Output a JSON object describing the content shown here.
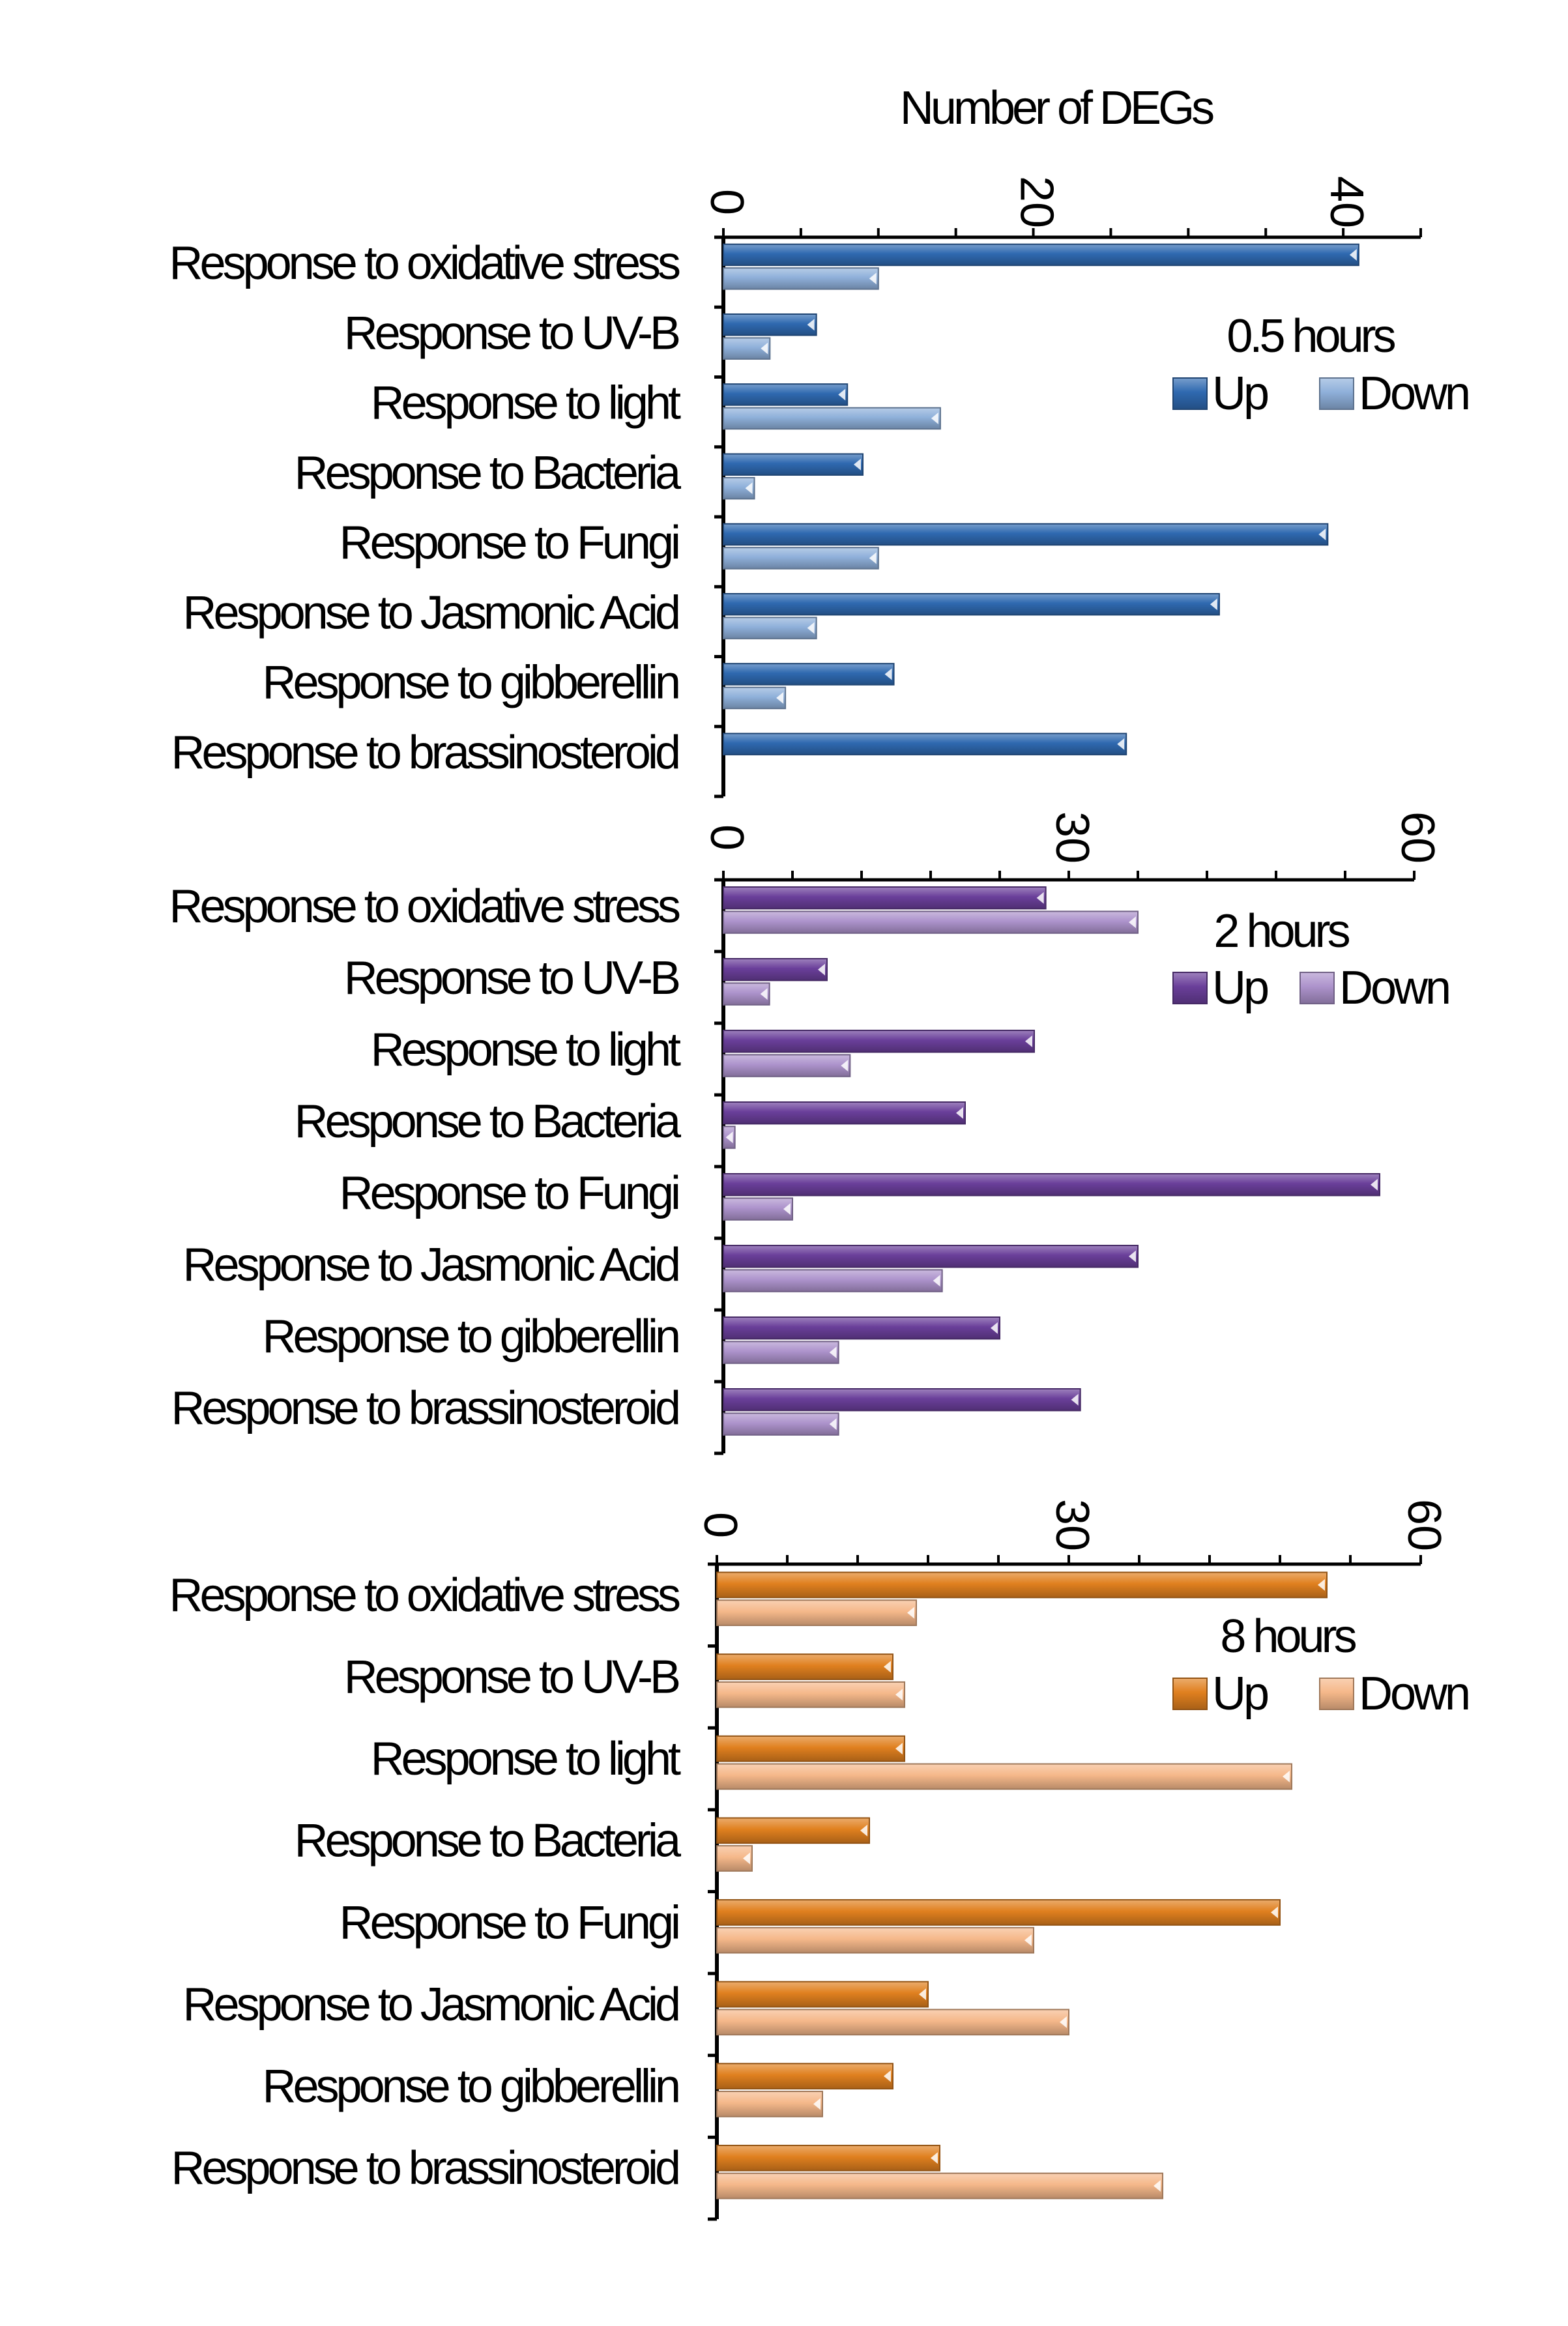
{
  "chart_data": [
    {
      "type": "bar",
      "orientation": "horizontal",
      "title": "Number of DEGs",
      "panel_label": "0.5 hours",
      "categories": [
        "Response to oxidative stress",
        "Response to UV-B",
        "Response to light",
        "Response to Bacteria",
        "Response to Fungi",
        "Response to Jasmonic Acid",
        "Response to gibberellin",
        "Response to brassinosteroid"
      ],
      "series": [
        {
          "name": "Up",
          "values": [
            41,
            6,
            8,
            9,
            39,
            32,
            11,
            26
          ]
        },
        {
          "name": "Down",
          "values": [
            10,
            3,
            14,
            2,
            10,
            6,
            4,
            0
          ]
        }
      ],
      "xlim": [
        0,
        45
      ],
      "ticks": [
        0,
        20,
        40
      ],
      "legend_position": "right",
      "colors": {
        "Up": "#2f69b0",
        "Down": "#8fb0da"
      }
    },
    {
      "type": "bar",
      "orientation": "horizontal",
      "panel_label": "2 hours",
      "categories": [
        "Response to oxidative stress",
        "Response to UV-B",
        "Response to light",
        "Response to Bacteria",
        "Response to Fungi",
        "Response to Jasmonic Acid",
        "Response to gibberellin",
        "Response to brassinosteroid"
      ],
      "series": [
        {
          "name": "Up",
          "values": [
            28,
            9,
            27,
            21,
            57,
            36,
            24,
            31
          ]
        },
        {
          "name": "Down",
          "values": [
            36,
            4,
            11,
            1,
            6,
            19,
            10,
            10
          ]
        }
      ],
      "xlim": [
        0,
        60
      ],
      "ticks": [
        0,
        30,
        60
      ],
      "legend_position": "right",
      "colors": {
        "Up": "#6a3f9a",
        "Down": "#ad93cc"
      }
    },
    {
      "type": "bar",
      "orientation": "horizontal",
      "panel_label": "8 hours",
      "categories": [
        "Response to oxidative stress",
        "Response to UV-B",
        "Response to light",
        "Response to Bacteria",
        "Response to Fungi",
        "Response to Jasmonic Acid",
        "Response to gibberellin",
        "Response to brassinosteroid"
      ],
      "series": [
        {
          "name": "Up",
          "values": [
            52,
            15,
            16,
            13,
            48,
            18,
            15,
            19
          ]
        },
        {
          "name": "Down",
          "values": [
            17,
            16,
            49,
            3,
            27,
            30,
            9,
            38
          ]
        }
      ],
      "xlim": [
        0,
        60
      ],
      "ticks": [
        0,
        30,
        60
      ],
      "legend_position": "right",
      "colors": {
        "Up": "#e0801f",
        "Down": "#f5b88a"
      }
    }
  ]
}
